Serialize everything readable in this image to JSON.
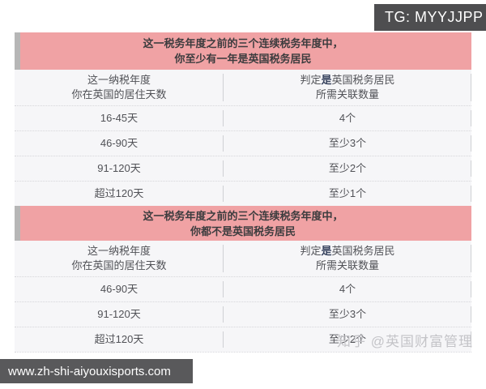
{
  "colors": {
    "pink": "#f0a2a4",
    "accent-bar": "#b6b6b6",
    "header-text": "#3c3c3e",
    "body-bg": "#f6f6f8",
    "body-text": "#515257",
    "bold-accent": "#37435e",
    "dotted": "#d6d6da",
    "divider": "#cfd0d4",
    "badge-bg": "#4e4e50",
    "urlbar-bg": "#59595b",
    "watermark": "#c4c4c8"
  },
  "tg_badge": "TG: MYYJJPP",
  "sections": [
    {
      "title_line1": "这一税务年度之前的三个连续税务年度中，",
      "title_line2": "你至少有一年是英国税务居民",
      "columns": {
        "days_line1": "这一纳税年度",
        "days_line2": "你在英国的居住天数",
        "ties_prefix": "判定",
        "ties_bold": "是",
        "ties_suffix": "英国税务居民",
        "ties_line2": "所需关联数量"
      },
      "rows": [
        {
          "days": "16-45天",
          "ties": "4个"
        },
        {
          "days": "46-90天",
          "ties": "至少3个"
        },
        {
          "days": "91-120天",
          "ties": "至少2个"
        },
        {
          "days": "超过120天",
          "ties": "至少1个"
        }
      ]
    },
    {
      "title_line1": "这一税务年度之前的三个连续税务年度中，",
      "title_line2": "你都不是英国税务居民",
      "columns": {
        "days_line1": "这一纳税年度",
        "days_line2": "你在英国的居住天数",
        "ties_prefix": "判定",
        "ties_bold": "是",
        "ties_suffix": "英国税务居民",
        "ties_line2": "所需关联数量"
      },
      "rows": [
        {
          "days": "46-90天",
          "ties": "4个"
        },
        {
          "days": "91-120天",
          "ties": "至少3个"
        },
        {
          "days": "超过120天",
          "ties": "至少2个"
        }
      ]
    }
  ],
  "watermark": "知乎 @英国财富管理",
  "url_bar": "www.zh-shi-aiyouxisports.com"
}
